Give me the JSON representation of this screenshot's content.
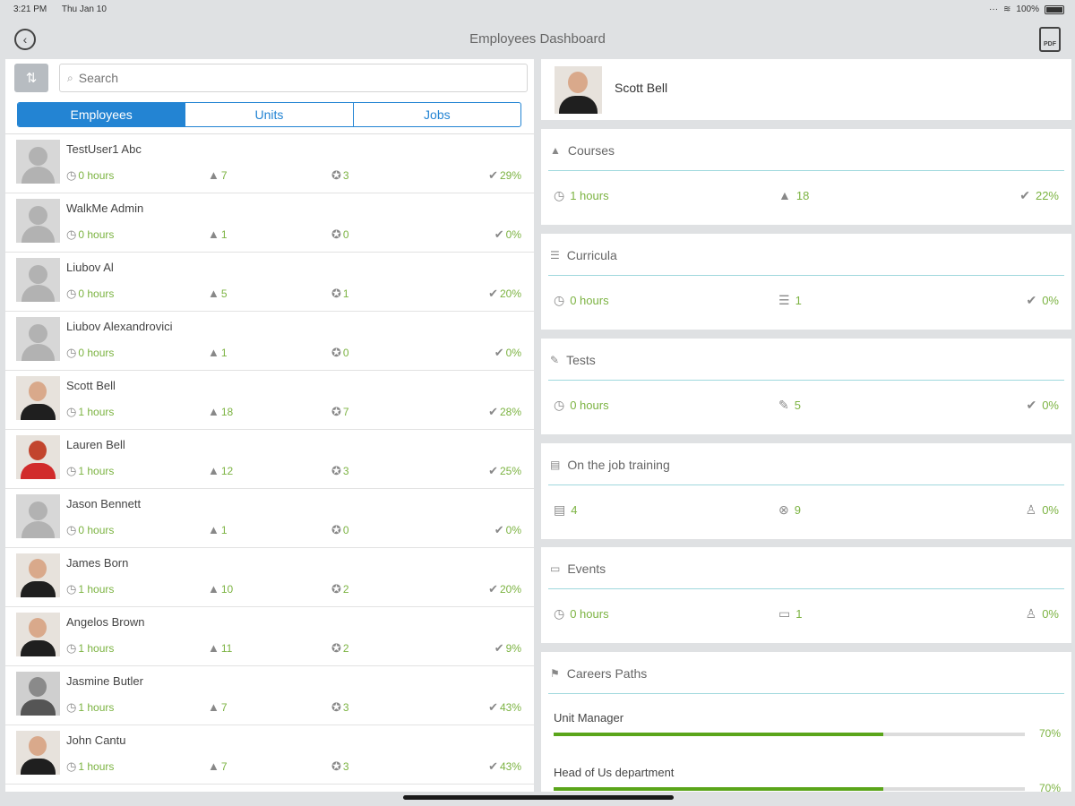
{
  "status": {
    "time": "3:21 PM",
    "date": "Thu Jan 10",
    "battery": "100%"
  },
  "nav": {
    "title": "Employees Dashboard",
    "pdf_label": "PDF"
  },
  "search": {
    "placeholder": "Search"
  },
  "segments": [
    "Employees",
    "Units",
    "Jobs"
  ],
  "employees": [
    {
      "name": "TestUser1 Abc",
      "hours": "0 hours",
      "courses": "7",
      "certs": "3",
      "progress": "29%",
      "photo": "generic"
    },
    {
      "name": "WalkMe Admin",
      "hours": "0 hours",
      "courses": "1",
      "certs": "0",
      "progress": "0%",
      "photo": "generic"
    },
    {
      "name": "Liubov Al",
      "hours": "0 hours",
      "courses": "5",
      "certs": "1",
      "progress": "20%",
      "photo": "generic"
    },
    {
      "name": "Liubov Alexandrovici",
      "hours": "0 hours",
      "courses": "1",
      "certs": "0",
      "progress": "0%",
      "photo": "generic"
    },
    {
      "name": "Scott Bell",
      "hours": "1 hours",
      "courses": "18",
      "certs": "7",
      "progress": "28%",
      "photo": "photo"
    },
    {
      "name": "Lauren Bell",
      "hours": "1 hours",
      "courses": "12",
      "certs": "3",
      "progress": "25%",
      "photo": "red"
    },
    {
      "name": "Jason Bennett",
      "hours": "0 hours",
      "courses": "1",
      "certs": "0",
      "progress": "0%",
      "photo": "generic"
    },
    {
      "name": "James Born",
      "hours": "1 hours",
      "courses": "10",
      "certs": "2",
      "progress": "20%",
      "photo": "photo"
    },
    {
      "name": "Angelos Brown",
      "hours": "1 hours",
      "courses": "11",
      "certs": "2",
      "progress": "9%",
      "photo": "photo"
    },
    {
      "name": "Jasmine Butler",
      "hours": "1 hours",
      "courses": "7",
      "certs": "3",
      "progress": "43%",
      "photo": "bw"
    },
    {
      "name": "John Cantu",
      "hours": "1 hours",
      "courses": "7",
      "certs": "3",
      "progress": "43%",
      "photo": "photo"
    }
  ],
  "profile": {
    "name": "Scott Bell"
  },
  "sections": [
    {
      "title": "Courses",
      "a": "1 hours",
      "b": "18",
      "c": "22%",
      "icons": [
        "courses-icon",
        "clock-icon",
        "courses-count-icon",
        "progress-icon"
      ]
    },
    {
      "title": "Curricula",
      "a": "0 hours",
      "b": "1",
      "c": "0%",
      "icons": [
        "curricula-icon",
        "clock-icon",
        "curricula-count-icon",
        "progress-icon"
      ]
    },
    {
      "title": "Tests",
      "a": "0 hours",
      "b": "5",
      "c": "0%",
      "icons": [
        "tests-icon",
        "clock-icon",
        "tests-count-icon",
        "progress-icon"
      ]
    },
    {
      "title": "On the job training",
      "a": "4",
      "b": "9",
      "c": "0%",
      "icons": [
        "ojt-icon",
        "document-icon",
        "target-icon",
        "trainee-icon"
      ]
    },
    {
      "title": "Events",
      "a": "0 hours",
      "b": "1",
      "c": "0%",
      "icons": [
        "events-icon",
        "clock-icon",
        "calendar-icon",
        "attendee-icon"
      ]
    }
  ],
  "careers": {
    "title": "Careers Paths",
    "paths": [
      {
        "label": "Unit Manager",
        "pct": "70%",
        "fraction": 0.7
      },
      {
        "label": "Head of Us department",
        "pct": "70%",
        "fraction": 0.7
      }
    ]
  },
  "colors": {
    "accent": "#2384d3",
    "green": "#7cb342",
    "divider": "#9fd8dd",
    "bar_fill": "#5aa51a"
  }
}
